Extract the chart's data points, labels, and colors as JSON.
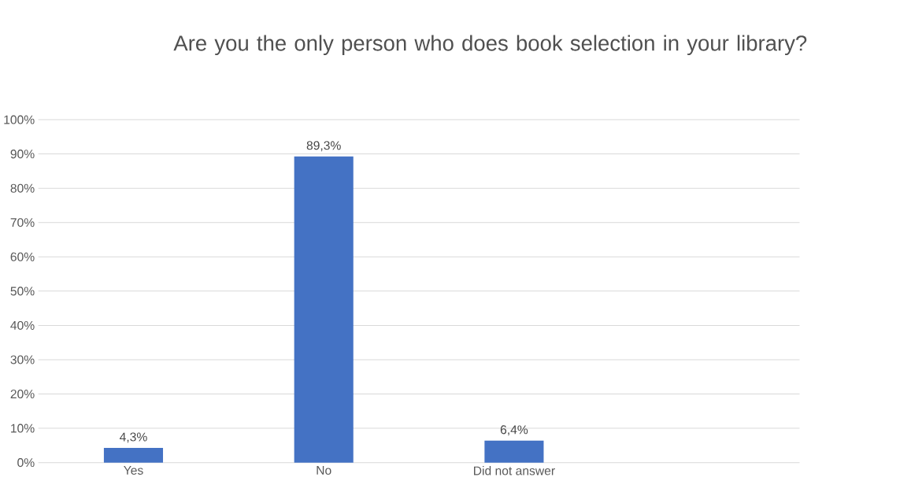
{
  "chart_data": {
    "type": "bar",
    "title": "Are you the only person who does book selection in your library?",
    "categories": [
      "Yes",
      "No",
      "Did not answer",
      null
    ],
    "values": [
      4.3,
      89.3,
      6.4,
      null
    ],
    "value_labels": [
      "4,3%",
      "89,3%",
      "6,4%",
      null
    ],
    "color": "#4472c4",
    "ylim": [
      0,
      100
    ],
    "yticks": [
      {
        "value": 0,
        "label": "0%"
      },
      {
        "value": 10,
        "label": "10%"
      },
      {
        "value": 20,
        "label": "20%"
      },
      {
        "value": 30,
        "label": "30%"
      },
      {
        "value": 40,
        "label": "40%"
      },
      {
        "value": 50,
        "label": "50%"
      },
      {
        "value": 60,
        "label": "60%"
      },
      {
        "value": 70,
        "label": "70%"
      },
      {
        "value": 80,
        "label": "80%"
      },
      {
        "value": 90,
        "label": "90%"
      },
      {
        "value": 100,
        "label": "100%"
      }
    ],
    "grid": "y"
  }
}
